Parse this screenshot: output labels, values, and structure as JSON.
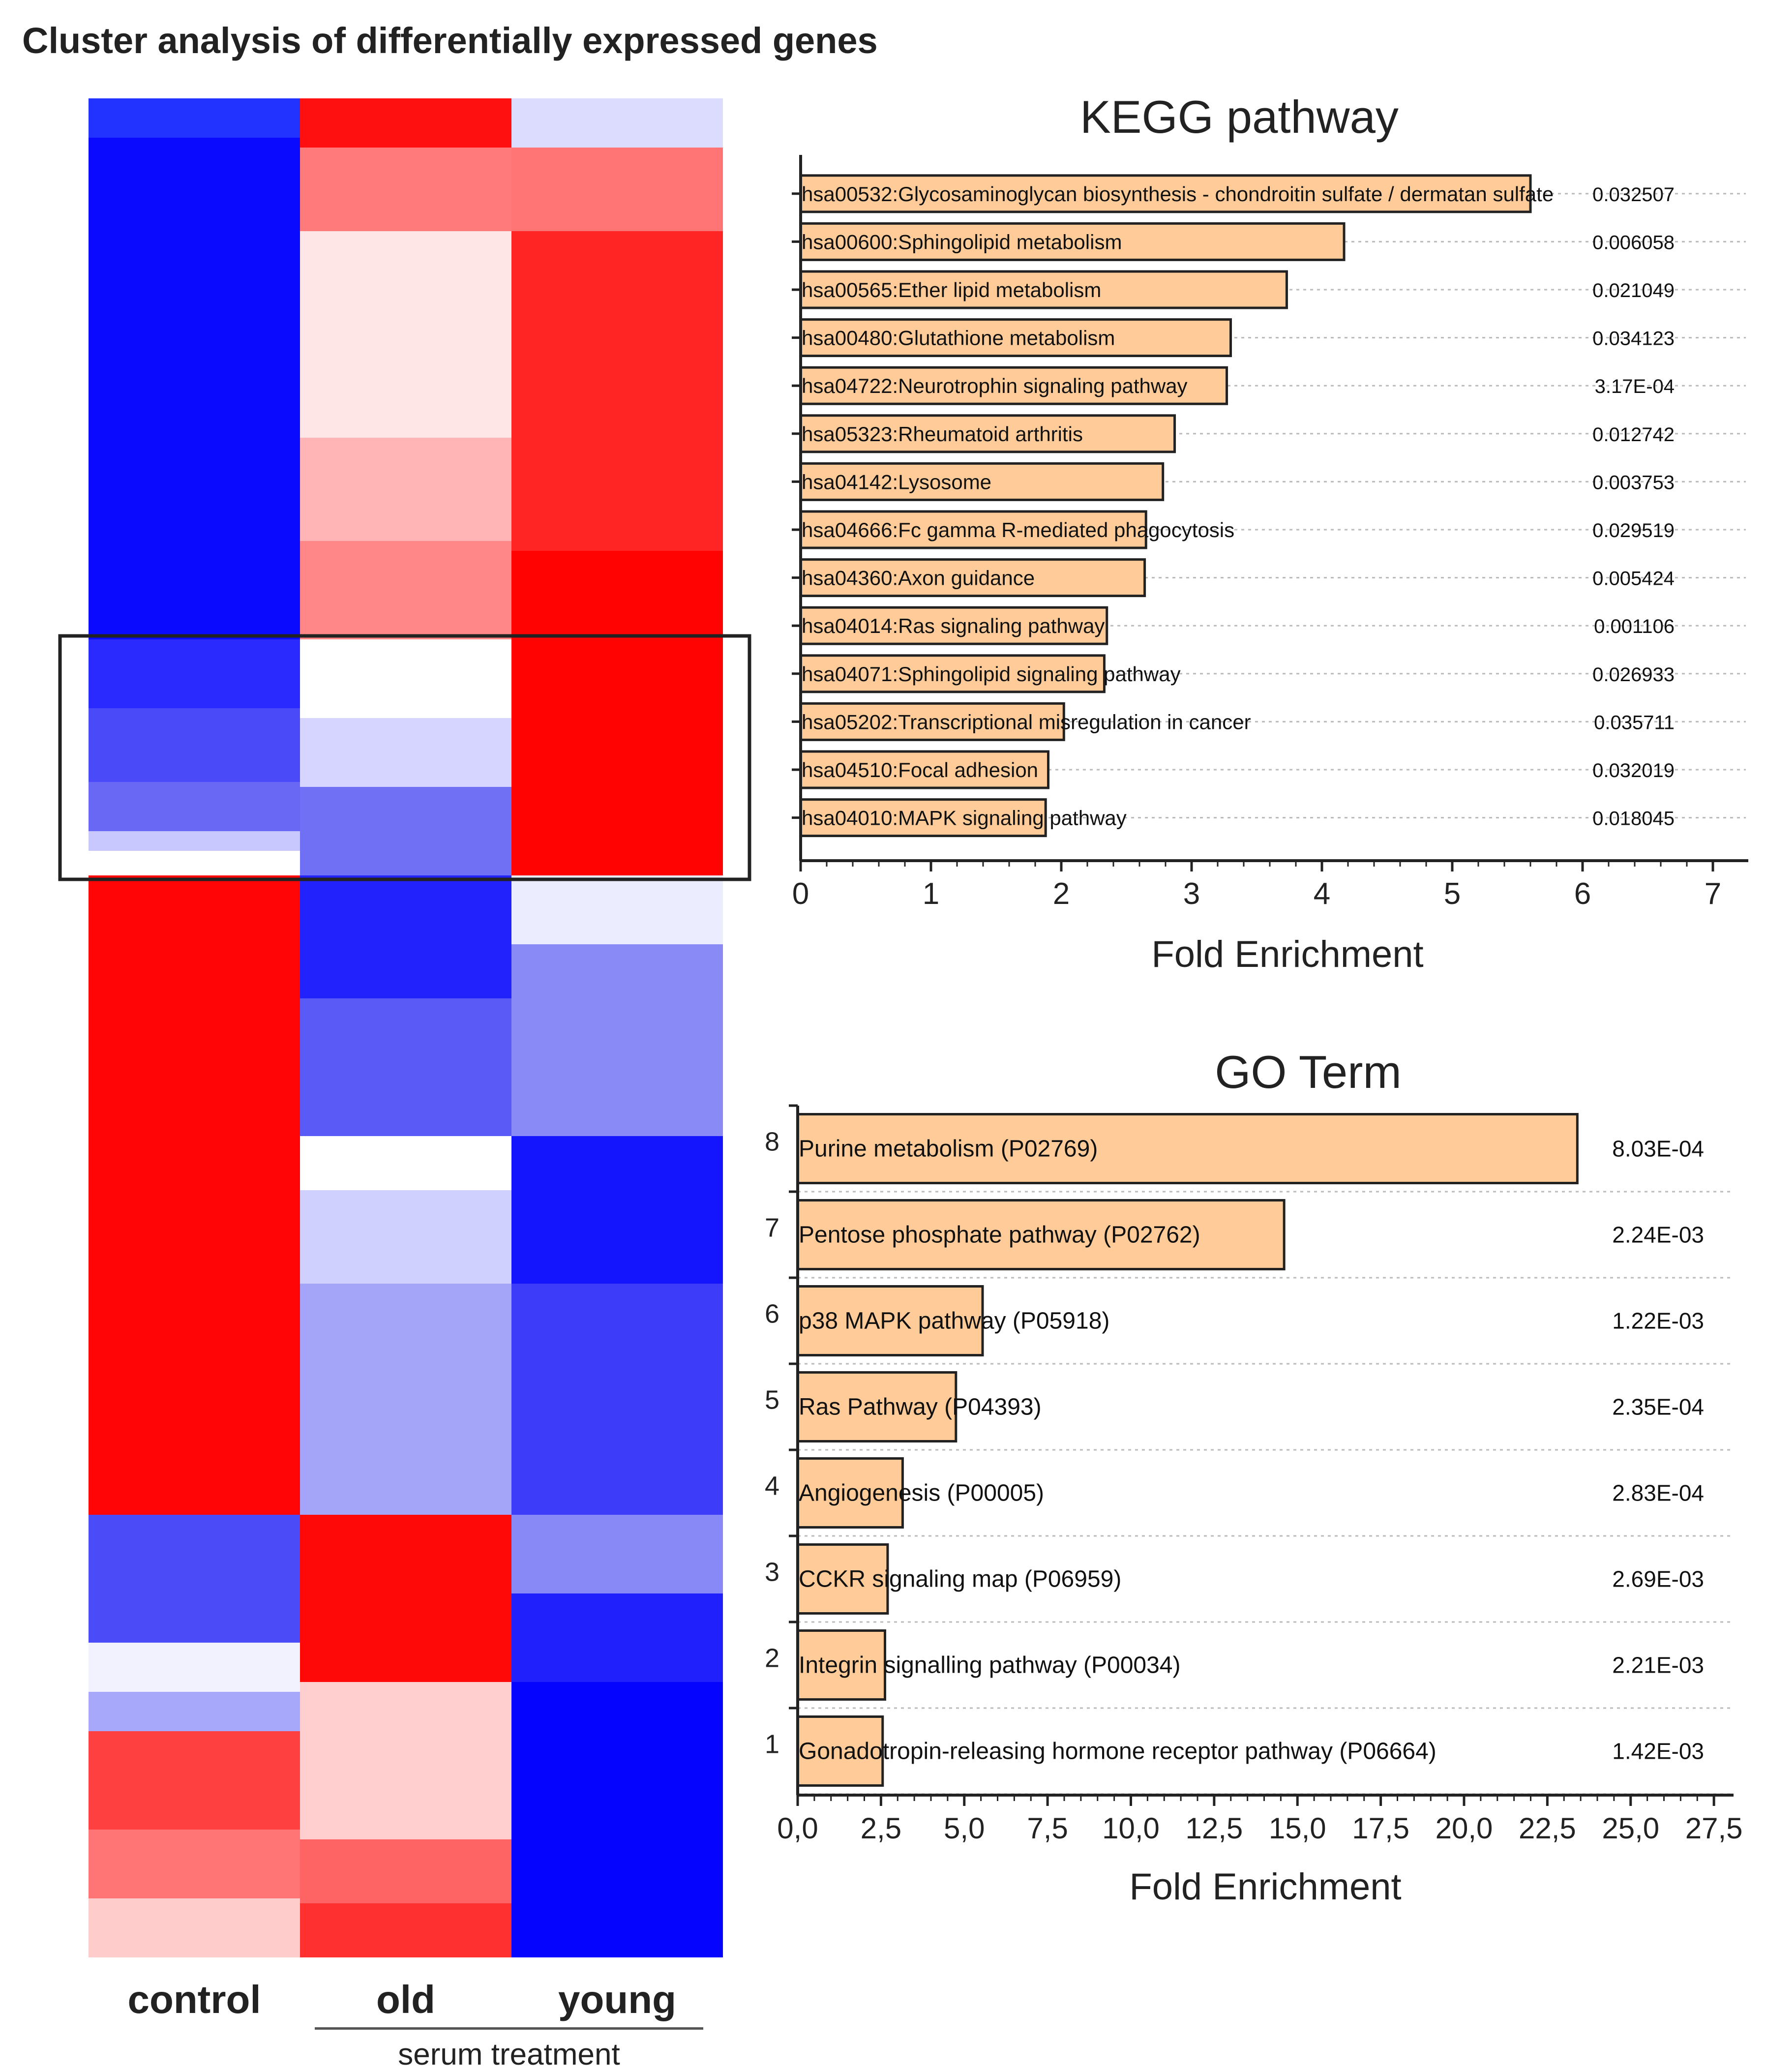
{
  "title": "Cluster analysis of differentially expressed genes",
  "heatmap": {
    "columns": [
      "control",
      "old",
      "young"
    ],
    "group_label": "serum treatment",
    "highlight_note": "boxed cluster"
  },
  "colors": {
    "bar_fill": "#FFCC99",
    "bar_stroke": "#222222",
    "heat_high": "#FF0000",
    "heat_mid": "#FFFFFF",
    "heat_low": "#0000FF"
  },
  "chart_data": [
    {
      "type": "bar",
      "orientation": "horizontal",
      "title": "KEGG pathway",
      "xlabel": "Fold Enrichment",
      "ylabel": "",
      "xlim": [
        0,
        7.2
      ],
      "xticks": [
        "0",
        "1",
        "2",
        "3",
        "4",
        "5",
        "6",
        "7"
      ],
      "categories": [
        "hsa00532:Glycosaminoglycan biosynthesis - chondroitin sulfate / dermatan sulfate",
        "hsa00600:Sphingolipid metabolism",
        "hsa00565:Ether lipid metabolism",
        "hsa00480:Glutathione metabolism",
        "hsa04722:Neurotrophin signaling pathway",
        "hsa05323:Rheumatoid arthritis",
        "hsa04142:Lysosome",
        "hsa04666:Fc gamma R-mediated phagocytosis",
        "hsa04360:Axon guidance",
        "hsa04014:Ras signaling pathway",
        "hsa04071:Sphingolipid signaling pathway",
        "hsa05202:Transcriptional misregulation in cancer",
        "hsa04510:Focal adhesion",
        "hsa04010:MAPK signaling pathway"
      ],
      "values": [
        5.6,
        4.17,
        3.73,
        3.3,
        3.27,
        2.87,
        2.78,
        2.65,
        2.64,
        2.35,
        2.33,
        2.02,
        1.9,
        1.88
      ],
      "pvalues": [
        "0.032507",
        "0.006058",
        "0.021049",
        "0.034123",
        "3.17E-04",
        "0.012742",
        "0.003753",
        "0.029519",
        "0.005424",
        "0.001106",
        "0.026933",
        "0.035711",
        "0.032019",
        "0.018045"
      ],
      "grid": true
    },
    {
      "type": "bar",
      "orientation": "horizontal",
      "title": "GO Term",
      "xlabel": "Fold Enrichment",
      "ylabel": "",
      "xlim": [
        0,
        28
      ],
      "xticks": [
        "0,0",
        "2,5",
        "5,0",
        "7,5",
        "10,0",
        "12,5",
        "15,0",
        "17,5",
        "20,0",
        "22,5",
        "25,0",
        "27,5"
      ],
      "ranks": [
        "8",
        "7",
        "6",
        "5",
        "4",
        "3",
        "2",
        "1"
      ],
      "categories": [
        "Purine metabolism (P02769)",
        "Pentose phosphate pathway (P02762)",
        "p38 MAPK pathway (P05918)",
        "Ras Pathway (P04393)",
        "Angiogenesis (P00005)",
        "CCKR signaling map (P06959)",
        "Integrin signalling pathway (P00034)",
        "Gonadotropin-releasing hormone receptor pathway (P06664)"
      ],
      "values": [
        23.4,
        14.6,
        5.55,
        4.75,
        3.15,
        2.7,
        2.62,
        2.55
      ],
      "pvalues": [
        "8.03E-04",
        "2.24E-03",
        "1.22E-03",
        "2.35E-04",
        "2.83E-04",
        "2.69E-03",
        "2.21E-03",
        "1.42E-03"
      ],
      "grid": true
    }
  ]
}
